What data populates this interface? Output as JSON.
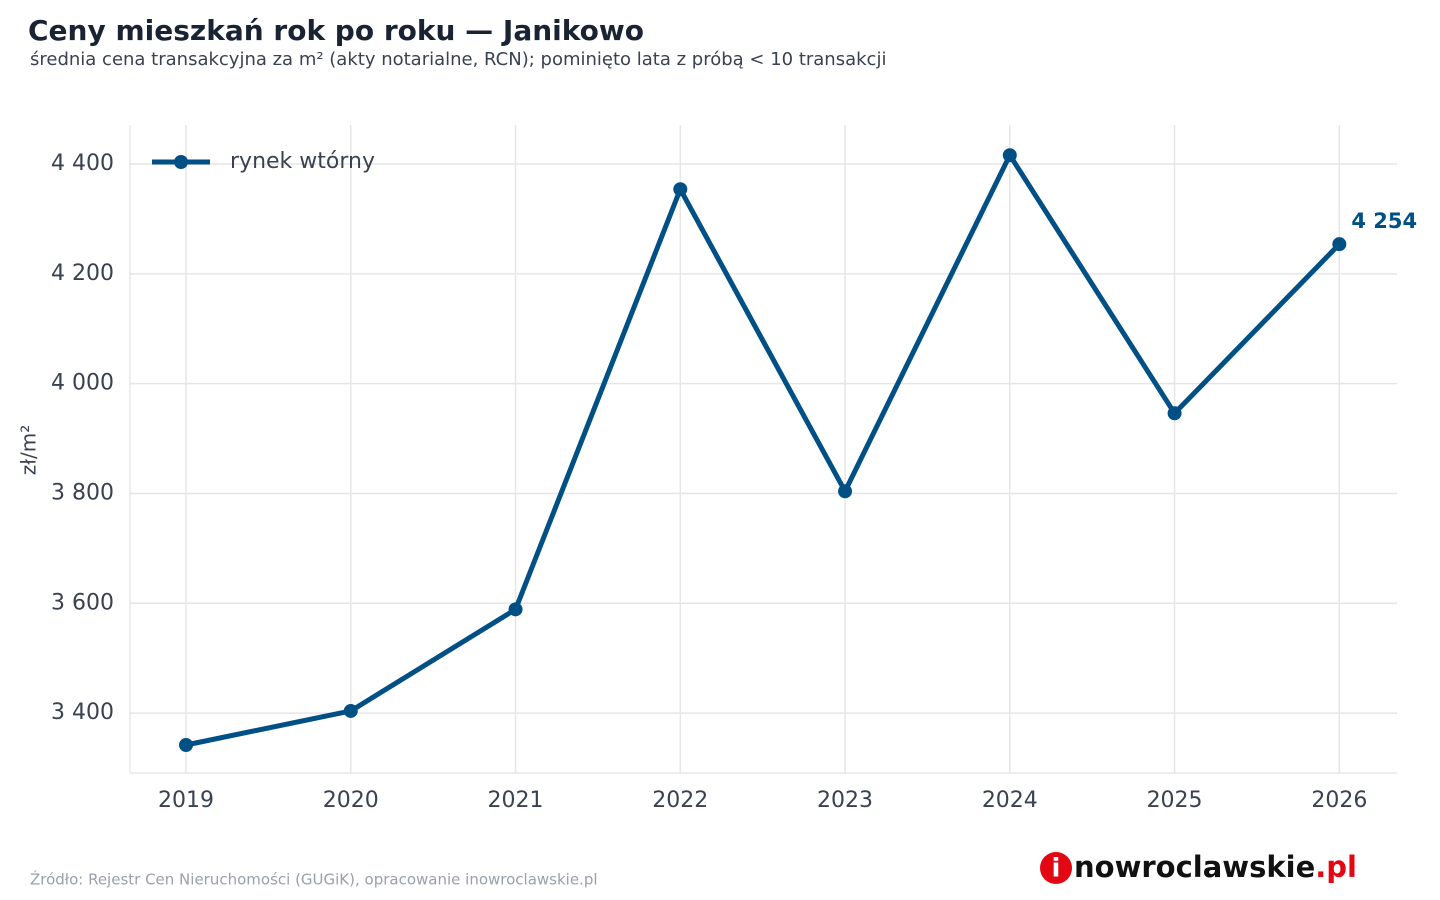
{
  "chart_data": {
    "type": "line",
    "title": "Ceny mieszkań rok po roku — Janikowo",
    "subtitle": "średnia cena transakcyjna za m² (akty notarialne, RCN); pominięto lata z próbą < 10 transakcji",
    "y_label": "zł/m²",
    "x": [
      2019,
      2020,
      2021,
      2022,
      2023,
      2024,
      2025,
      2026
    ],
    "series": [
      {
        "name": "rynek wtórny",
        "color": "#005086",
        "values": [
          3342,
          3404,
          3589,
          4354,
          3804,
          4416,
          3946,
          4254
        ],
        "value_labels": [
          null,
          null,
          null,
          null,
          null,
          null,
          null,
          "4 254"
        ]
      }
    ],
    "xlim": [
      2018.66,
      2026.35
    ],
    "xticks": [
      2019,
      2020,
      2021,
      2022,
      2023,
      2024,
      2025,
      2026
    ],
    "ylim": [
      3291,
      4471
    ],
    "yticks": [
      {
        "value": 3400,
        "label": "3 400"
      },
      {
        "value": 3600,
        "label": "3 600"
      },
      {
        "value": 3800,
        "label": "3 800"
      },
      {
        "value": 4000,
        "label": "4 000"
      },
      {
        "value": 4200,
        "label": "4 200"
      },
      {
        "value": 4400,
        "label": "4 400"
      }
    ],
    "grid": true,
    "legend": "upper left",
    "source": "Źródło: Rejestr Cen Nieruchomości (GUGiK), opracowanie inowroclawskie.pl",
    "logo": [
      "i",
      "nowroclawskie",
      ".pl"
    ]
  }
}
